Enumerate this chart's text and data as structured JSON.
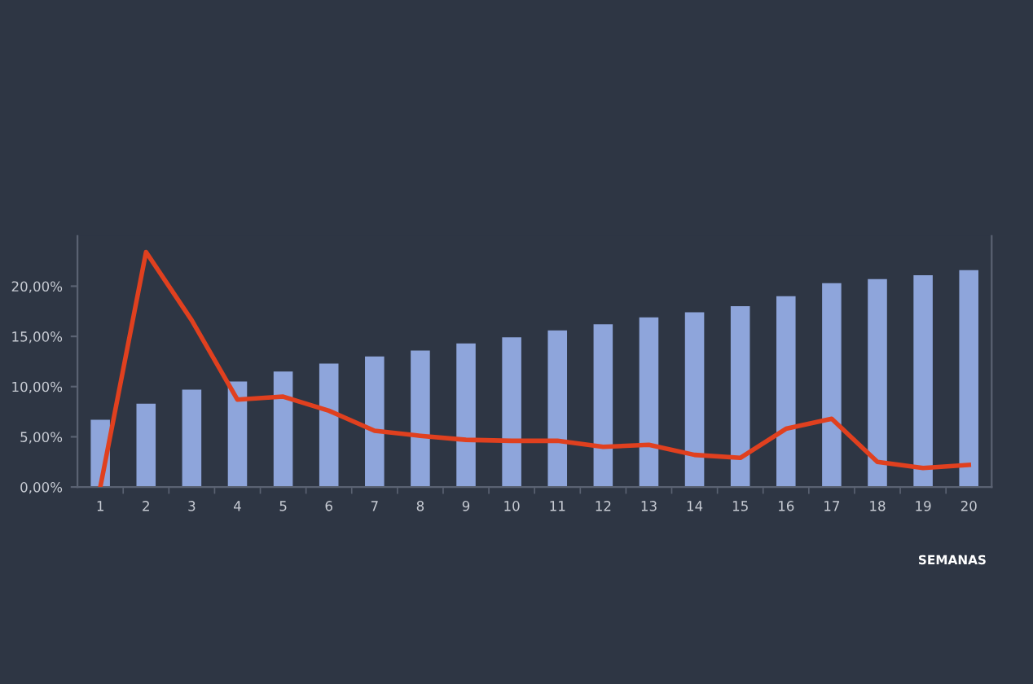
{
  "chart_data": {
    "type": "bar",
    "xlabel": "SEMANAS",
    "categories": [
      "1",
      "2",
      "3",
      "4",
      "5",
      "6",
      "7",
      "8",
      "9",
      "10",
      "11",
      "12",
      "13",
      "14",
      "15",
      "16",
      "17",
      "18",
      "19",
      "20"
    ],
    "series": [
      {
        "color": "#8ea5db",
        "values": [
          6.7,
          8.3,
          9.7,
          10.5,
          11.5,
          12.3,
          13.0,
          13.6,
          14.3,
          14.9,
          15.6,
          16.2,
          16.9,
          17.4,
          18.0,
          19.0,
          20.3,
          20.7,
          21.1,
          21.6
        ]
      },
      {
        "type": "line",
        "color": "#e0401f",
        "values": [
          0,
          23.4,
          16.6,
          8.7,
          9.0,
          7.6,
          5.6,
          5.1,
          4.7,
          4.6,
          4.6,
          4.0,
          4.2,
          3.2,
          2.9,
          5.8,
          6.8,
          2.5,
          1.9,
          2.2
        ]
      }
    ],
    "ylim": [
      0,
      25
    ],
    "yticks": [
      {
        "value": 0,
        "label": "0,00%"
      },
      {
        "value": 5,
        "label": "5,00%"
      },
      {
        "value": 10,
        "label": "10,00%"
      },
      {
        "value": 15,
        "label": "15,00%"
      },
      {
        "value": 20,
        "label": "20,00%"
      }
    ],
    "grid": false,
    "legend": false,
    "marker": "none",
    "line_style": "solid"
  }
}
